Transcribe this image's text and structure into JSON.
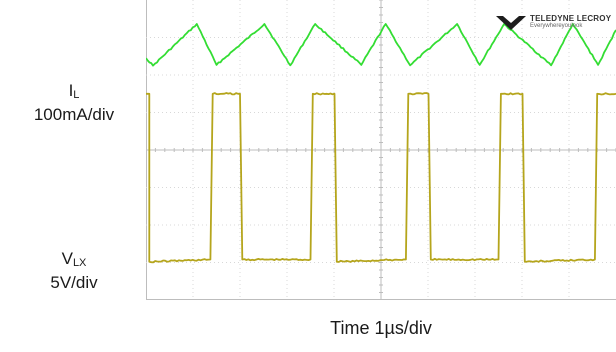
{
  "logo": {
    "brand": "TELEDYNE LECROY",
    "tagline": "Everywhereyoulook"
  },
  "labels": {
    "il_main": "I",
    "il_sub": "L",
    "il_scale": "100mA/div",
    "vlx_main": "V",
    "vlx_sub": "LX",
    "vlx_scale": "5V/div",
    "xlabel": "Time 1µs/div"
  },
  "colors": {
    "il_trace": "#33dd33",
    "vlx_trace": "#b5a51c",
    "grid": "#d8d8d8",
    "axis": "#bdbdbd"
  },
  "chart_data": [
    {
      "type": "line",
      "title": "",
      "xlabel": "Time 1µs/div",
      "ylabel": "IL 100mA/div",
      "grid": true,
      "xlim": [
        0,
        10
      ],
      "ylim": [
        0,
        8
      ],
      "series": [
        {
          "x": [
            0,
            0.15,
            1.08,
            1.5,
            2.52,
            3.07,
            3.6,
            4.58,
            5.1,
            5.62,
            6.62,
            7.1,
            7.62,
            8.62,
            9.08,
            9.62,
            10
          ],
          "y": [
            6.45,
            6.25,
            7.36,
            6.27,
            7.36,
            6.26,
            7.36,
            6.27,
            7.36,
            6.26,
            7.36,
            6.27,
            7.36,
            6.26,
            7.36,
            6.27,
            7.2
          ]
        }
      ]
    },
    {
      "type": "line",
      "title": "",
      "xlabel": "Time 1µs/div",
      "ylabel": "VLX 5V/div",
      "grid": true,
      "xlim": [
        0,
        10
      ],
      "ylim": [
        0,
        8
      ],
      "series": [
        {
          "x": [
            0,
            0.02,
            0.07,
            0.07,
            1.37,
            1.42,
            2.0,
            2.05,
            3.5,
            3.55,
            4.01,
            4.06,
            5.53,
            5.58,
            6.01,
            6.06,
            7.5,
            7.55,
            8.01,
            8.06,
            9.55,
            9.6,
            10
          ],
          "y": [
            5.5,
            5.5,
            5.5,
            1.02,
            1.08,
            5.5,
            5.5,
            1.08,
            1.08,
            5.5,
            5.5,
            1.02,
            1.08,
            5.5,
            5.5,
            1.08,
            1.08,
            5.5,
            5.5,
            1.02,
            1.08,
            5.5,
            5.5
          ]
        }
      ]
    }
  ]
}
